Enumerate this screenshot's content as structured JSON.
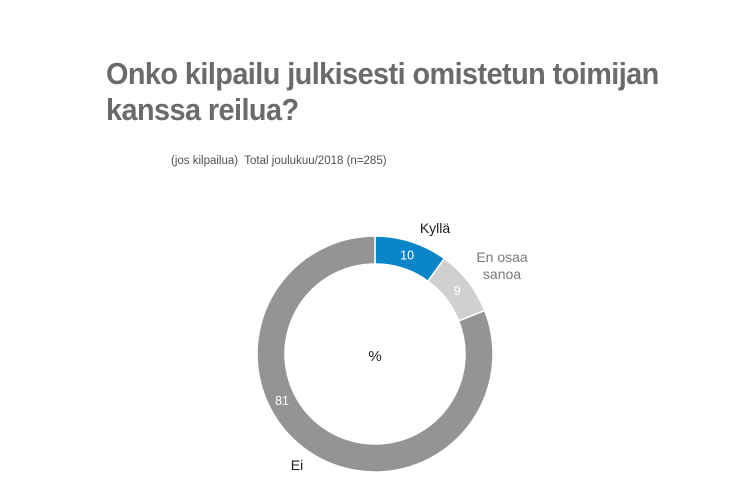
{
  "title": "Onko kilpailu julkisesti omistetun toimijan kanssa reilua?",
  "subtitle": "(jos kilpailua)  Total joulukuu/2018 (n=285)",
  "chart_data": {
    "type": "pie",
    "donut": true,
    "center_label": "%",
    "slices": [
      {
        "label": "Kyllä",
        "value": 10,
        "color": "#0a86c8",
        "value_color": "#ffffff",
        "label_color": "#1a1a1a"
      },
      {
        "label": "En osaa sanoa",
        "value": 9,
        "color": "#d0d0d0",
        "value_color": "#ffffff",
        "label_color": "#7a7a7a"
      },
      {
        "label": "Ei",
        "value": 81,
        "color": "#949494",
        "value_color": "#ffffff",
        "label_color": "#1a1a1a"
      }
    ]
  }
}
